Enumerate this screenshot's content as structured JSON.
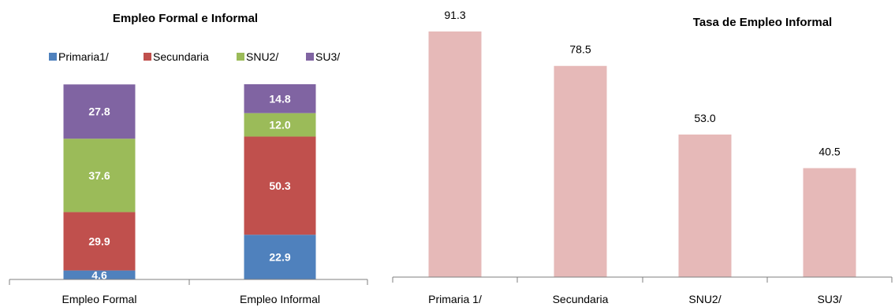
{
  "chart_data": [
    {
      "type": "bar",
      "stacked": true,
      "title": "Empleo Formal e Informal",
      "categories": [
        "Empleo Formal",
        "Empleo Informal"
      ],
      "series": [
        {
          "name": "Primaria1/",
          "color": "#4f81bd",
          "values": [
            4.6,
            22.9
          ]
        },
        {
          "name": "Secundaria",
          "color": "#c0504d",
          "values": [
            29.9,
            50.3
          ]
        },
        {
          "name": "SNU2/",
          "color": "#9bbb59",
          "values": [
            37.6,
            12.0
          ]
        },
        {
          "name": "SU3/",
          "color": "#8064a2",
          "values": [
            27.8,
            14.8
          ]
        }
      ],
      "ylim": [
        0,
        100
      ],
      "legend": "top",
      "grid": false
    },
    {
      "type": "bar",
      "title": "Tasa de Empleo Informal",
      "categories": [
        "Primaria 1/",
        "Secundaria",
        "SNU2/",
        "SU3/"
      ],
      "values": [
        91.3,
        78.5,
        53.0,
        40.5
      ],
      "color": "#e6b9b8",
      "ylim": [
        0,
        100
      ],
      "legend": "none",
      "grid": false
    }
  ]
}
